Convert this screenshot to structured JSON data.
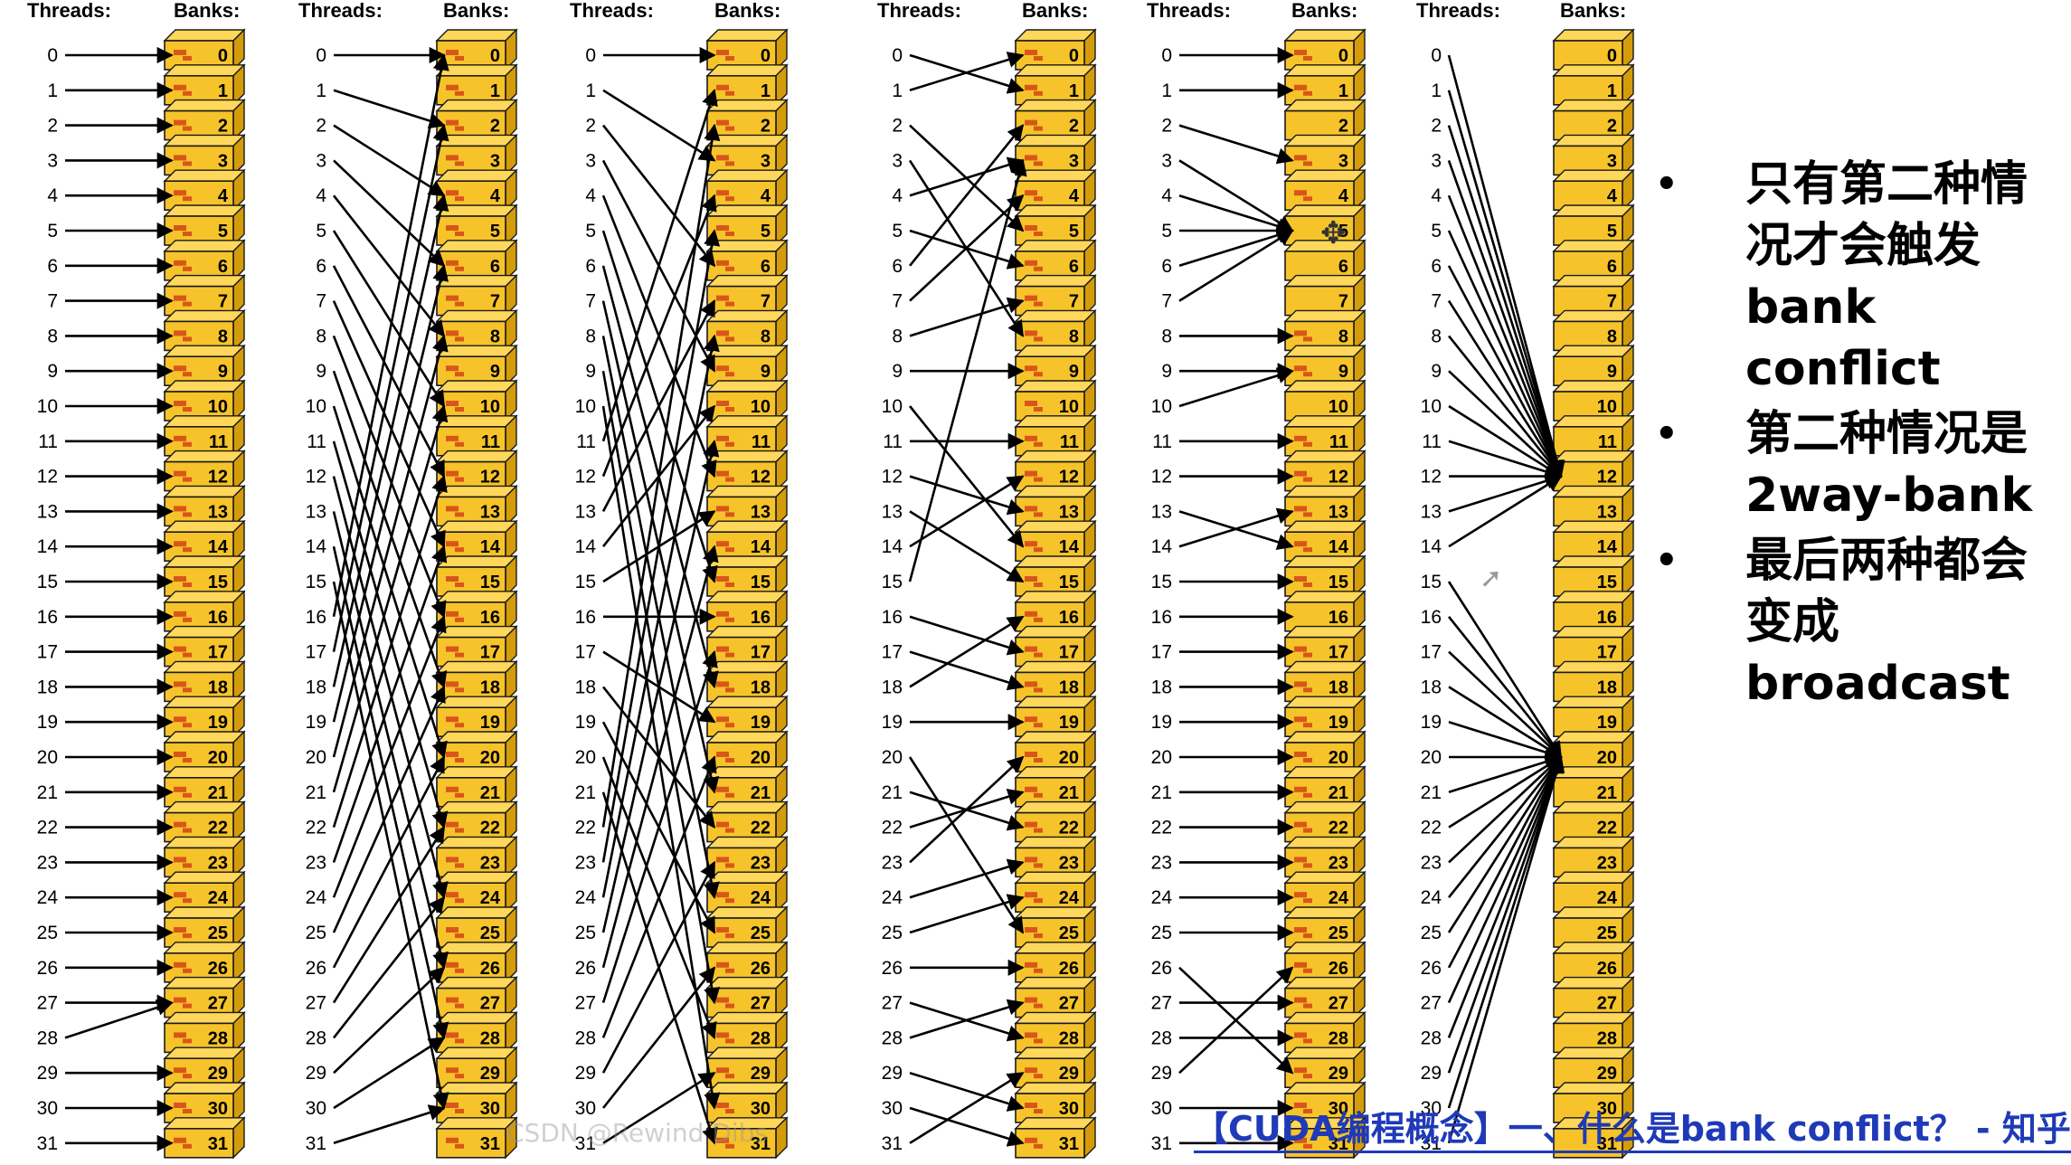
{
  "labels": {
    "threads_header": "Threads:",
    "banks_header": "Banks:"
  },
  "panels": [
    {
      "name": "linear",
      "mapping": [
        0,
        1,
        2,
        3,
        4,
        5,
        6,
        7,
        8,
        9,
        10,
        11,
        12,
        13,
        14,
        15,
        16,
        17,
        18,
        19,
        20,
        21,
        22,
        23,
        24,
        25,
        26,
        27,
        27,
        29,
        30,
        31
      ]
    },
    {
      "name": "stride-2",
      "mapping": [
        0,
        2,
        4,
        6,
        8,
        10,
        12,
        14,
        16,
        18,
        20,
        22,
        24,
        26,
        28,
        30,
        0,
        2,
        4,
        6,
        8,
        10,
        12,
        14,
        16,
        18,
        20,
        22,
        24,
        26,
        28,
        30
      ]
    },
    {
      "name": "stride-3",
      "mapping": [
        0,
        3,
        6,
        9,
        12,
        15,
        18,
        21,
        24,
        27,
        30,
        1,
        4,
        7,
        10,
        13,
        16,
        19,
        22,
        25,
        28,
        31,
        2,
        5,
        8,
        11,
        14,
        17,
        20,
        23,
        26,
        29
      ]
    },
    {
      "name": "random-permutation",
      "mapping": [
        1,
        0,
        5,
        8,
        3,
        6,
        2,
        4,
        7,
        9,
        14,
        11,
        13,
        15,
        12,
        3,
        17,
        18,
        16,
        19,
        25,
        22,
        21,
        20,
        23,
        24,
        26,
        28,
        27,
        30,
        31,
        29
      ]
    },
    {
      "name": "broadcast-bank-5",
      "mapping": [
        0,
        1,
        3,
        5,
        5,
        5,
        5,
        5,
        8,
        9,
        9,
        11,
        12,
        14,
        13,
        15,
        16,
        17,
        18,
        19,
        20,
        21,
        22,
        23,
        24,
        25,
        29,
        27,
        28,
        26,
        30,
        31
      ]
    },
    {
      "name": "broadcast-bank-12-20",
      "mapping": [
        12,
        12,
        12,
        12,
        12,
        12,
        12,
        12,
        12,
        12,
        12,
        12,
        12,
        12,
        12,
        20,
        20,
        20,
        20,
        20,
        20,
        20,
        20,
        20,
        20,
        20,
        20,
        20,
        20,
        20,
        20,
        20
      ]
    }
  ],
  "bank_marks_hidden": {
    "panel-4": [
      2,
      5,
      6,
      7,
      10,
      16
    ],
    "panel-5": "all"
  },
  "notes": [
    "只有第二种情况才会触发bank conflict",
    "第二种情况是2way-bank",
    "最后两种都会变成broadcast"
  ],
  "footer_link": "【CUDA编程概念】一、什么是bank conflict？ - 知乎",
  "watermark": "CSDN @Rewind Dibs",
  "colors": {
    "bank_fill": "#f6c42a",
    "bank_top": "#ffd75a",
    "bank_side": "#d49c0a",
    "bank_mark": "#d9561a",
    "link": "#1f3ab8"
  },
  "icons": [
    "move-cursor-icon",
    "arrow-cursor-icon"
  ]
}
